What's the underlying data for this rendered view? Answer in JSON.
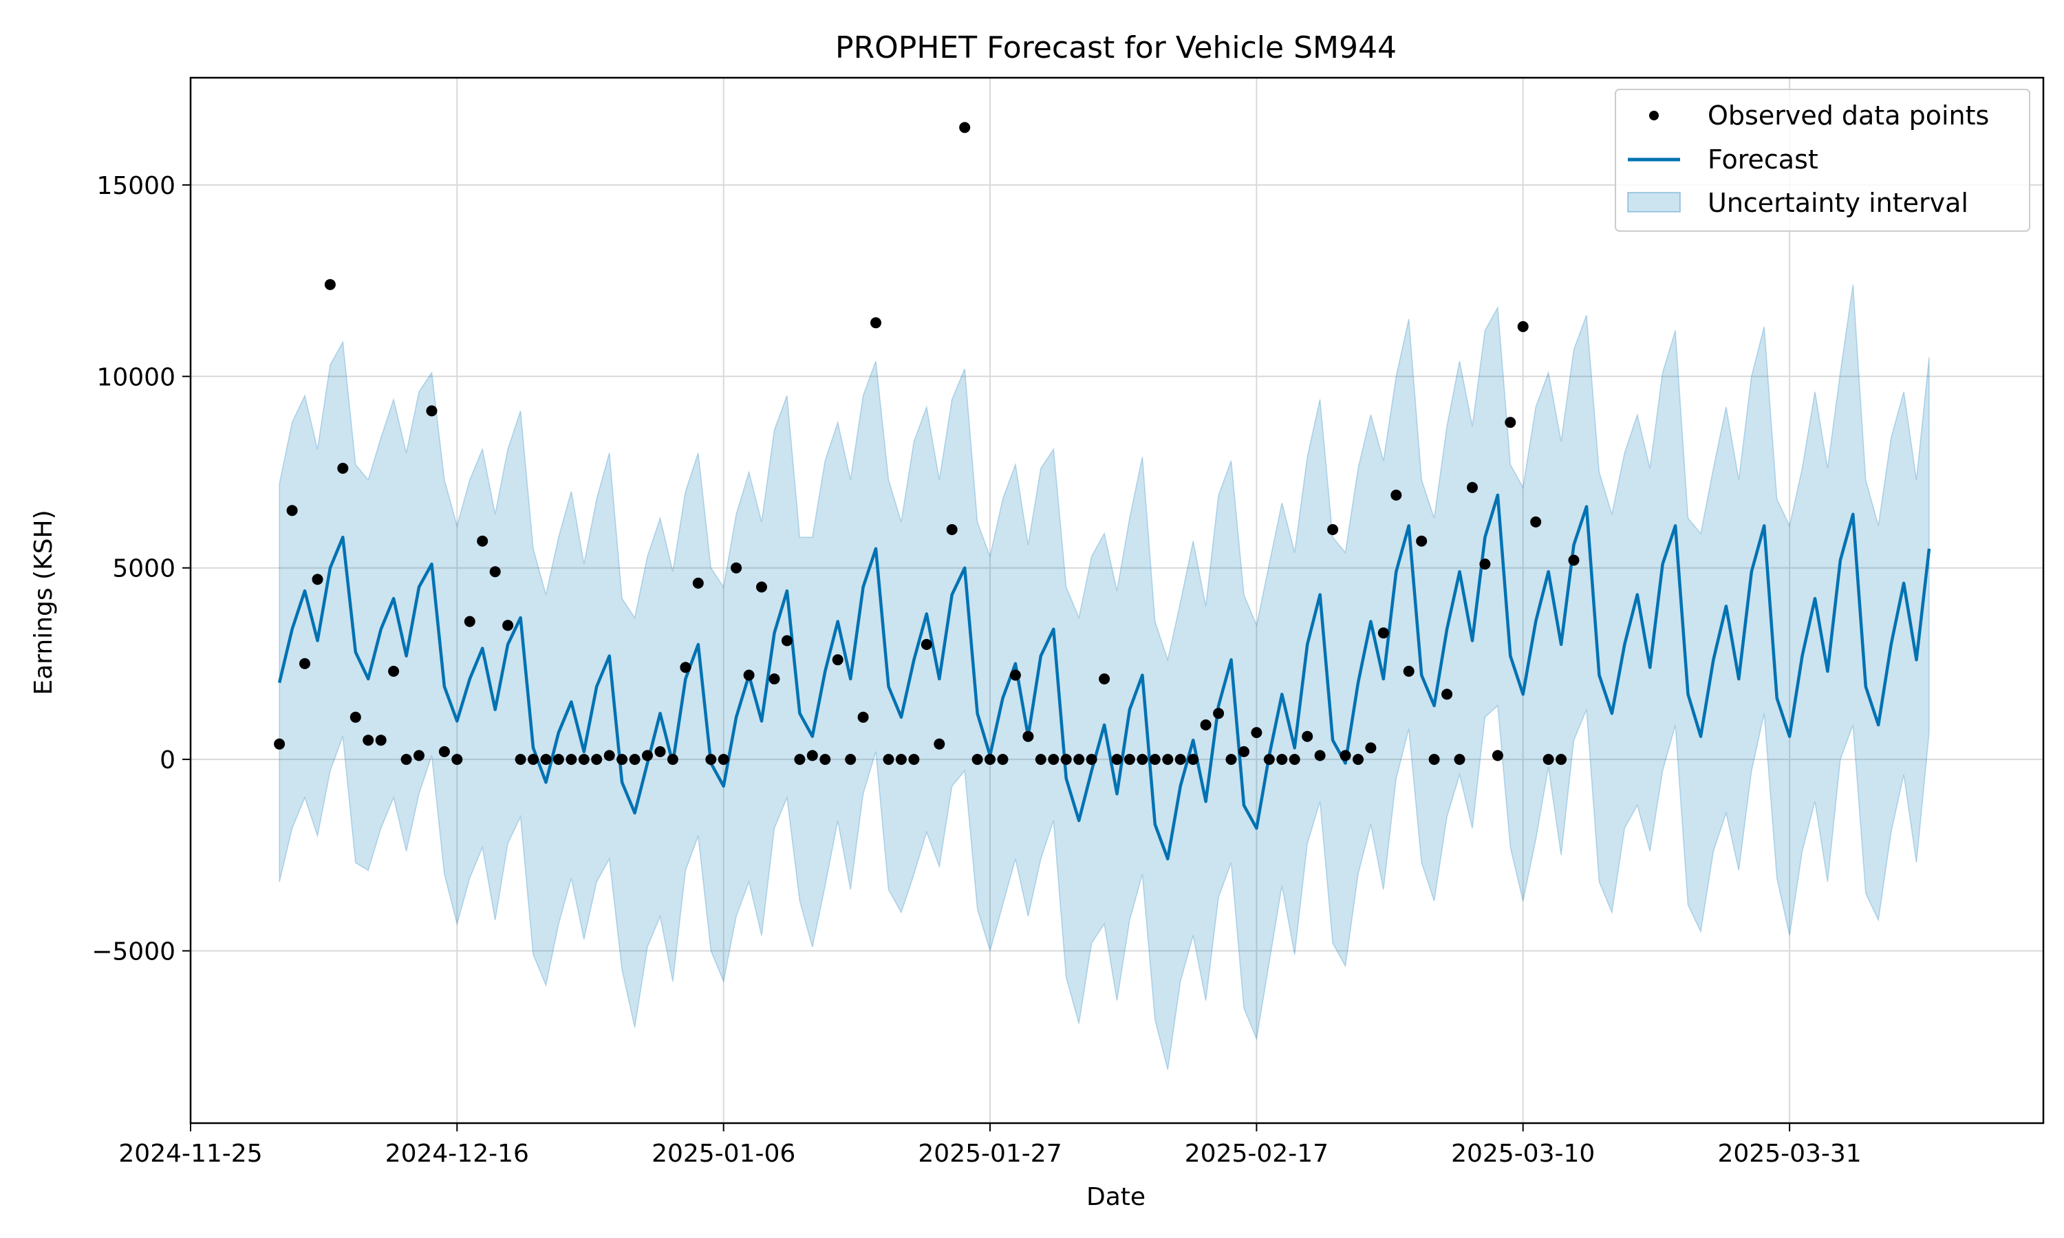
{
  "chart_data": {
    "type": "line",
    "title": "PROPHET Forecast for Vehicle SM944",
    "xlabel": "Date",
    "ylabel": "Earnings (KSH)",
    "x_start": "2024-12-02",
    "x_end": "2025-04-14",
    "xlim": [
      "2024-11-25",
      "2025-04-20"
    ],
    "ylim": [
      -9500,
      17800
    ],
    "x_ticks": [
      "2024-11-25",
      "2024-12-16",
      "2025-01-06",
      "2025-01-27",
      "2025-02-17",
      "2025-03-10",
      "2025-03-31"
    ],
    "y_ticks": [
      -5000,
      0,
      5000,
      10000,
      15000
    ],
    "y_tick_labels": [
      "−5000",
      "0",
      "5000",
      "10000",
      "15000"
    ],
    "grid": true,
    "legend_position": "top-right",
    "legend": [
      {
        "label": "Observed data points",
        "kind": "marker"
      },
      {
        "label": "Forecast",
        "kind": "line"
      },
      {
        "label": "Uncertainty interval",
        "kind": "band"
      }
    ],
    "colors": {
      "forecast": "#0072b2",
      "band_fill": "#0072b2",
      "band_opacity": 0.2,
      "observed": "#000000",
      "grid": "#d9d9d9"
    },
    "series": [
      {
        "name": "Observed data points",
        "kind": "scatter",
        "y": [
          400,
          6500,
          2500,
          4700,
          12400,
          7600,
          1100,
          500,
          500,
          2300,
          0,
          100,
          9100,
          200,
          0,
          3600,
          5700,
          4900,
          3500,
          0,
          0,
          0,
          0,
          0,
          0,
          0,
          100,
          0,
          0,
          100,
          200,
          0,
          2400,
          4600,
          0,
          0,
          5000,
          2200,
          4500,
          2100,
          3100,
          0,
          100,
          0,
          2600,
          0,
          1100,
          11400,
          0,
          0,
          0,
          3000,
          400,
          6000,
          16500,
          0,
          0,
          0,
          2200,
          600,
          0,
          0,
          0,
          0,
          0,
          2100,
          0,
          0,
          0,
          0,
          0,
          0,
          0,
          900,
          1200,
          0,
          200,
          700,
          0,
          0,
          0,
          600,
          100,
          6000,
          100,
          0,
          300,
          3300,
          6900,
          2300,
          5700,
          0,
          1700,
          0,
          7100,
          5100,
          100,
          8800,
          11300,
          6200,
          0,
          0,
          5200
        ]
      },
      {
        "name": "Forecast",
        "kind": "line",
        "y": [
          2000,
          3400,
          4400,
          3100,
          5000,
          5800,
          2800,
          2100,
          3400,
          4200,
          2700,
          4500,
          5100,
          1900,
          1000,
          2100,
          2900,
          1300,
          3000,
          3700,
          300,
          -600,
          700,
          1500,
          200,
          1900,
          2700,
          -600,
          -1400,
          -100,
          1200,
          -100,
          2100,
          3000,
          -100,
          -700,
          1100,
          2200,
          1000,
          3300,
          4400,
          1200,
          600,
          2300,
          3600,
          2100,
          4500,
          5500,
          1900,
          1100,
          2600,
          3800,
          2100,
          4300,
          5000,
          1200,
          100,
          1600,
          2500,
          600,
          2700,
          3400,
          -500,
          -1600,
          -300,
          900,
          -900,
          1300,
          2200,
          -1700,
          -2600,
          -700,
          500,
          -1100,
          1400,
          2600,
          -1200,
          -1800,
          100,
          1700,
          300,
          3000,
          4300,
          500,
          -100,
          2000,
          3600,
          2100,
          4900,
          6100,
          2200,
          1400,
          3400,
          4900,
          3100,
          5800,
          6900,
          2700,
          1700,
          3600,
          4900,
          3000,
          5600,
          6600,
          2200,
          1200,
          3000,
          4300,
          2400,
          5100,
          6100,
          1700,
          600,
          2600,
          4000,
          2100,
          4900,
          6100,
          1600,
          600,
          2700,
          4200,
          2300,
          5200,
          6400,
          1900,
          900,
          3000,
          4600,
          2600,
          5500
        ]
      },
      {
        "name": "Uncertainty interval",
        "kind": "band",
        "upper": [
          7200,
          8800,
          9500,
          8100,
          10300,
          10900,
          7700,
          7300,
          8400,
          9400,
          8000,
          9600,
          10100,
          7300,
          6100,
          7300,
          8100,
          6400,
          8100,
          9100,
          5500,
          4300,
          5800,
          7000,
          5100,
          6800,
          8000,
          4200,
          3700,
          5300,
          6300,
          4900,
          7000,
          8000,
          5000,
          4500,
          6400,
          7500,
          6200,
          8600,
          9500,
          5800,
          5800,
          7800,
          8800,
          7300,
          9500,
          10400,
          7300,
          6200,
          8300,
          9200,
          7300,
          9400,
          10200,
          6200,
          5300,
          6800,
          7700,
          5600,
          7600,
          8100,
          4500,
          3700,
          5300,
          5900,
          4400,
          6300,
          7900,
          3600,
          2600,
          4100,
          5700,
          4000,
          6900,
          7800,
          4300,
          3500,
          5100,
          6700,
          5400,
          7900,
          9400,
          5800,
          5400,
          7600,
          9000,
          7800,
          10000,
          11500,
          7300,
          6300,
          8700,
          10400,
          8700,
          11200,
          11800,
          7700,
          7100,
          9200,
          10100,
          8300,
          10700,
          11600,
          7500,
          6400,
          8000,
          9000,
          7600,
          10100,
          11200,
          6300,
          5900,
          7600,
          9200,
          7300,
          10000,
          11300,
          6800,
          6100,
          7600,
          9600,
          7600,
          10100,
          12400,
          7300,
          6100,
          8400,
          9600,
          7300,
          10500
        ],
        "lower": [
          -3200,
          -1800,
          -1000,
          -2000,
          -300,
          600,
          -2700,
          -2900,
          -1800,
          -1000,
          -2400,
          -900,
          100,
          -3000,
          -4300,
          -3100,
          -2300,
          -4200,
          -2200,
          -1500,
          -5100,
          -5900,
          -4300,
          -3100,
          -4700,
          -3200,
          -2600,
          -5500,
          -7000,
          -4900,
          -4100,
          -5800,
          -2900,
          -2000,
          -5000,
          -5800,
          -4100,
          -3200,
          -4600,
          -1800,
          -1000,
          -3700,
          -4900,
          -3300,
          -1600,
          -3400,
          -900,
          200,
          -3400,
          -4000,
          -3000,
          -1900,
          -2800,
          -700,
          -300,
          -3900,
          -5000,
          -3800,
          -2600,
          -4100,
          -2600,
          -1600,
          -5700,
          -6900,
          -4800,
          -4300,
          -6300,
          -4200,
          -3000,
          -6800,
          -8100,
          -5800,
          -4600,
          -6300,
          -3600,
          -2700,
          -6500,
          -7300,
          -5300,
          -3300,
          -5100,
          -2200,
          -1100,
          -4800,
          -5400,
          -3000,
          -1700,
          -3400,
          -500,
          800,
          -2700,
          -3700,
          -1500,
          -400,
          -1800,
          1100,
          1400,
          -2300,
          -3700,
          -2100,
          -200,
          -2500,
          500,
          1300,
          -3200,
          -4000,
          -1800,
          -1200,
          -2400,
          -300,
          900,
          -3800,
          -4500,
          -2400,
          -1400,
          -2900,
          -300,
          1200,
          -3100,
          -4600,
          -2400,
          -1100,
          -3200,
          0,
          900,
          -3500,
          -4200,
          -1900,
          -400,
          -2700,
          700
        ]
      }
    ]
  }
}
